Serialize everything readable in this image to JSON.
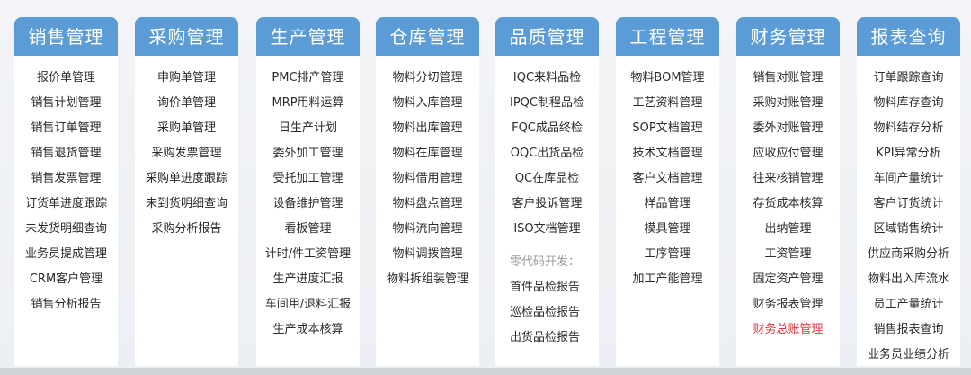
{
  "colors": {
    "header": "#5b9bd6",
    "highlight": "#e0353d"
  },
  "columns": [
    {
      "title": "销售管理",
      "items": [
        "报价单管理",
        "销售计划管理",
        "销售订单管理",
        "销售退货管理",
        "销售发票管理",
        "订货单进度跟踪",
        "未发货明细查询",
        "业务员提成管理",
        "CRM客户管理",
        "销售分析报告"
      ]
    },
    {
      "title": "采购管理",
      "items": [
        "申购单管理",
        "询价单管理",
        "采购单管理",
        "采购发票管理",
        "采购单进度跟踪",
        "未到货明细查询",
        "采购分析报告"
      ]
    },
    {
      "title": "生产管理",
      "items": [
        "PMC排产管理",
        "MRP用料运算",
        "日生产计划",
        "委外加工管理",
        "受托加工管理",
        "设备维护管理",
        "看板管理",
        "计时/件工资管理",
        "生产进度汇报",
        "车间用/退料汇报",
        "生产成本核算"
      ]
    },
    {
      "title": "仓库管理",
      "items": [
        "物料分切管理",
        "物料入库管理",
        "物料出库管理",
        "物料在库管理",
        "物料借用管理",
        "物料盘点管理",
        "物料流向管理",
        "物料调拨管理",
        "物料拆组装管理"
      ]
    },
    {
      "title": "品质管理",
      "items": [
        "IQC来料品检",
        "IPQC制程品检",
        "FQC成品终检",
        "OQC出货品检",
        "QC在库品检",
        "客户投诉管理",
        "ISO文档管理"
      ],
      "note": "零代码开发：",
      "extra_items": [
        "首件品检报告",
        "巡检品检报告",
        "出货品检报告"
      ]
    },
    {
      "title": "工程管理",
      "items": [
        "物料BOM管理",
        "工艺资料管理",
        "SOP文档管理",
        "技术文档管理",
        "客户文档管理",
        "样品管理",
        "模具管理",
        "工序管理",
        "加工产能管理"
      ]
    },
    {
      "title": "财务管理",
      "items": [
        "销售对账管理",
        "采购对账管理",
        "委外对账管理",
        "应收应付管理",
        "往来核销管理",
        "存货成本核算",
        "出纳管理",
        "工资管理",
        "固定资产管理",
        "财务报表管理",
        "财务总账管理"
      ],
      "highlighted_item": "财务总账管理"
    },
    {
      "title": "报表查询",
      "items": [
        "订单跟踪查询",
        "物料库存查询",
        "物料结存分析",
        "KPI异常分析",
        "车间产量统计",
        "客户订货统计",
        "区域销售统计",
        "供应商采购分析",
        "物料出入库流水",
        "员工产量统计",
        "销售报表查询",
        "业务员业绩分析"
      ]
    }
  ]
}
